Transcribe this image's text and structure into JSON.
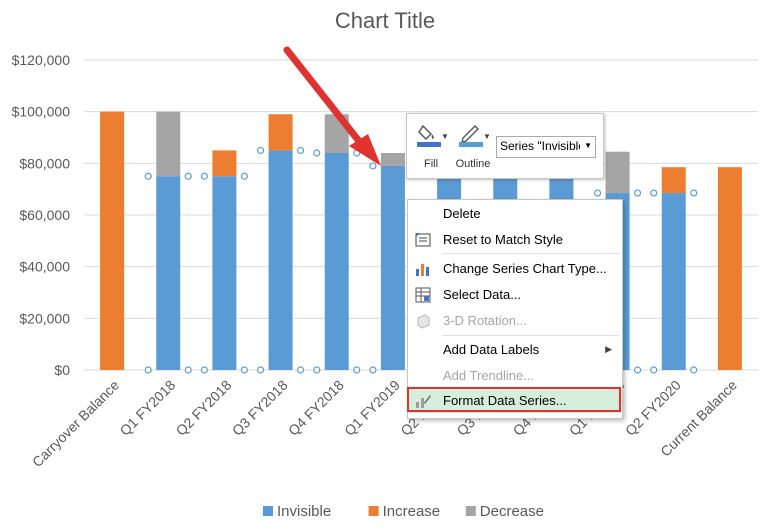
{
  "chart_data": {
    "type": "bar",
    "stacked": true,
    "title": "Chart Title",
    "categories": [
      "Carryover Balance",
      "Q1 FY2018",
      "Q2 FY2018",
      "Q3 FY2018",
      "Q4 FY2018",
      "Q1 FY2019",
      "Q2 FY2019",
      "Q3 FY2019",
      "Q4 FY2019",
      "Q1 FY2020",
      "Q2 FY2020",
      "Current Balance"
    ],
    "series": [
      {
        "name": "Invisible",
        "color": "#5b9bd5",
        "values": [
          0,
          75000,
          75000,
          85000,
          84000,
          79000,
          79000,
          79000,
          79000,
          68500,
          68500,
          0
        ]
      },
      {
        "name": "Increase",
        "color": "#ed7d31",
        "values": [
          100000,
          0,
          10000,
          14000,
          0,
          0,
          0,
          0,
          0,
          0,
          10000,
          78500
        ]
      },
      {
        "name": "Decrease",
        "color": "#a5a5a5",
        "values": [
          0,
          25000,
          0,
          0,
          15000,
          5000,
          0,
          0,
          0,
          16000,
          0,
          0
        ]
      }
    ],
    "ylim": [
      0,
      120000
    ],
    "yticks": [
      0,
      20000,
      40000,
      60000,
      80000,
      100000,
      120000
    ],
    "ytick_labels": [
      "$0",
      "$20,000",
      "$40,000",
      "$60,000",
      "$80,000",
      "$100,000",
      "$120,000"
    ],
    "gridlines": true,
    "legend_position": "bottom",
    "selected_series": "Invisible"
  },
  "mini_toolbar": {
    "fill_label": "Fill",
    "outline_label": "Outline",
    "series_selector": "Series \"Invisible\""
  },
  "context_menu": {
    "items": [
      {
        "label": "Delete",
        "icon": "none",
        "enabled": true
      },
      {
        "label": "Reset to Match Style",
        "icon": "reset-style-icon",
        "enabled": true
      },
      {
        "label": "Change Series Chart Type...",
        "icon": "chart-type-icon",
        "enabled": true
      },
      {
        "label": "Select Data...",
        "icon": "select-data-icon",
        "enabled": true
      },
      {
        "label": "3-D Rotation...",
        "icon": "3d-rotation-icon",
        "enabled": false
      },
      {
        "label": "Add Data Labels",
        "icon": "none",
        "enabled": true,
        "submenu": true
      },
      {
        "label": "Add Trendline...",
        "icon": "none",
        "enabled": false
      },
      {
        "label": "Format Data Series...",
        "icon": "format-series-icon",
        "enabled": true,
        "highlighted": true
      }
    ]
  },
  "annotation": {
    "arrow_color": "#e0322f"
  }
}
